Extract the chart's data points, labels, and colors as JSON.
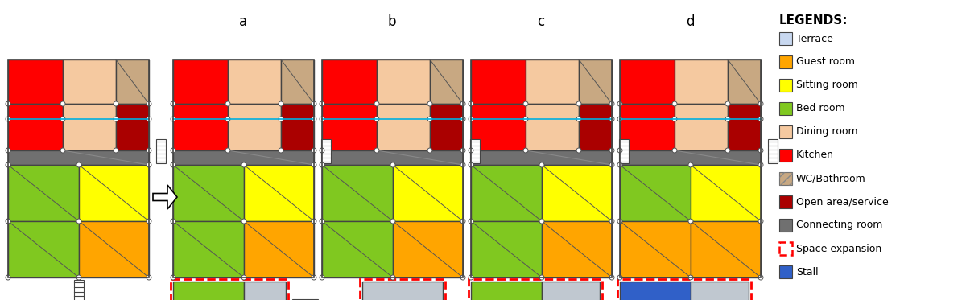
{
  "colors": {
    "kitchen_red": "#FF0000",
    "open_area_darkred": "#AA0000",
    "dining_room": "#F5C9A0",
    "wc_bathroom": "#C8A882",
    "sitting_room_yellow": "#FFFF00",
    "guest_room_orange": "#FFA500",
    "bed_room_green": "#80C820",
    "connecting_room_gray": "#707070",
    "terrace_lightblue": "#C8D8F0",
    "stall_blue": "#3060C8",
    "expansion_gray": "#C0C8D0",
    "outline": "#444444",
    "background": "#FFFFFF",
    "cyan_line": "#00B0E0"
  },
  "legend_items": [
    {
      "label": "Terrace",
      "color": "#C8D8F0",
      "dashed": false
    },
    {
      "label": "Guest room",
      "color": "#FFA500",
      "dashed": false
    },
    {
      "label": "Sitting room",
      "color": "#FFFF00",
      "dashed": false
    },
    {
      "label": "Bed room",
      "color": "#80C820",
      "dashed": false
    },
    {
      "label": "Dining room",
      "color": "#F5C9A0",
      "dashed": false
    },
    {
      "label": "Kitchen",
      "color": "#FF0000",
      "dashed": false
    },
    {
      "label": "WC/Bathroom",
      "color": "#C8A882",
      "dashed": false,
      "hatch": true
    },
    {
      "label": "Open area/service",
      "color": "#AA0000",
      "dashed": false
    },
    {
      "label": "Connecting room",
      "color": "#707070",
      "dashed": false
    },
    {
      "label": "Space expansion",
      "color": "none",
      "dashed": true,
      "edge": "#FF0000"
    },
    {
      "label": "Stall",
      "color": "#3060C8",
      "dashed": false
    }
  ],
  "labels": [
    "a",
    "b",
    "c",
    "d"
  ],
  "title": "LEGENDS:"
}
